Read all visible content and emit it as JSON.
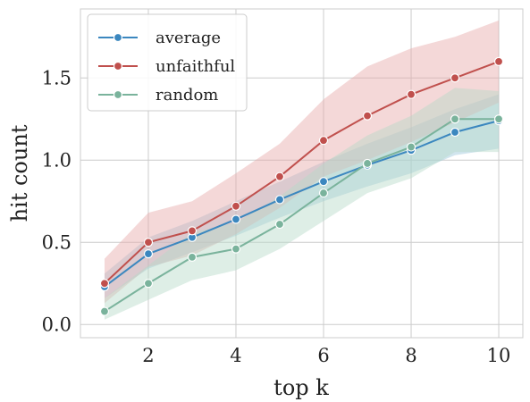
{
  "chart_data": {
    "type": "line",
    "title": "",
    "xlabel": "top k",
    "ylabel": "hit count",
    "xlim": [
      0.45,
      10.55
    ],
    "ylim": [
      -0.08,
      1.92
    ],
    "xticks": [
      2,
      4,
      6,
      8,
      10
    ],
    "yticks": [
      0.0,
      0.5,
      1.0,
      1.5
    ],
    "ytick_labels": [
      "0.0",
      "0.5",
      "1.0",
      "1.5"
    ],
    "grid": true,
    "legend_position": "top-left",
    "x": [
      1,
      2,
      3,
      4,
      5,
      6,
      7,
      8,
      9,
      10
    ],
    "series": [
      {
        "name": "average",
        "color": "#3b87bf",
        "band_color": "#9ac6da",
        "values": [
          0.23,
          0.43,
          0.53,
          0.64,
          0.76,
          0.87,
          0.97,
          1.06,
          1.17,
          1.24
        ],
        "lower": [
          0.16,
          0.34,
          0.44,
          0.54,
          0.65,
          0.75,
          0.84,
          0.92,
          1.03,
          1.07
        ],
        "upper": [
          0.31,
          0.53,
          0.63,
          0.75,
          0.87,
          0.99,
          1.1,
          1.2,
          1.31,
          1.4
        ]
      },
      {
        "name": "unfaithful",
        "color": "#c0504d",
        "band_color": "#e6a9a8",
        "values": [
          0.25,
          0.5,
          0.57,
          0.72,
          0.9,
          1.12,
          1.27,
          1.4,
          1.5,
          1.6
        ],
        "lower": [
          0.13,
          0.35,
          0.42,
          0.55,
          0.71,
          0.9,
          1.0,
          1.11,
          1.23,
          1.35
        ],
        "upper": [
          0.4,
          0.68,
          0.75,
          0.92,
          1.1,
          1.37,
          1.57,
          1.68,
          1.75,
          1.85
        ]
      },
      {
        "name": "random",
        "color": "#7ab39c",
        "band_color": "#b5d9c8",
        "values": [
          0.08,
          0.25,
          0.41,
          0.46,
          0.61,
          0.8,
          0.98,
          1.08,
          1.25,
          1.25
        ],
        "lower": [
          0.03,
          0.15,
          0.27,
          0.33,
          0.46,
          0.63,
          0.8,
          0.89,
          1.05,
          1.05
        ],
        "upper": [
          0.16,
          0.36,
          0.56,
          0.62,
          0.78,
          0.98,
          1.15,
          1.27,
          1.44,
          1.42
        ]
      }
    ]
  }
}
